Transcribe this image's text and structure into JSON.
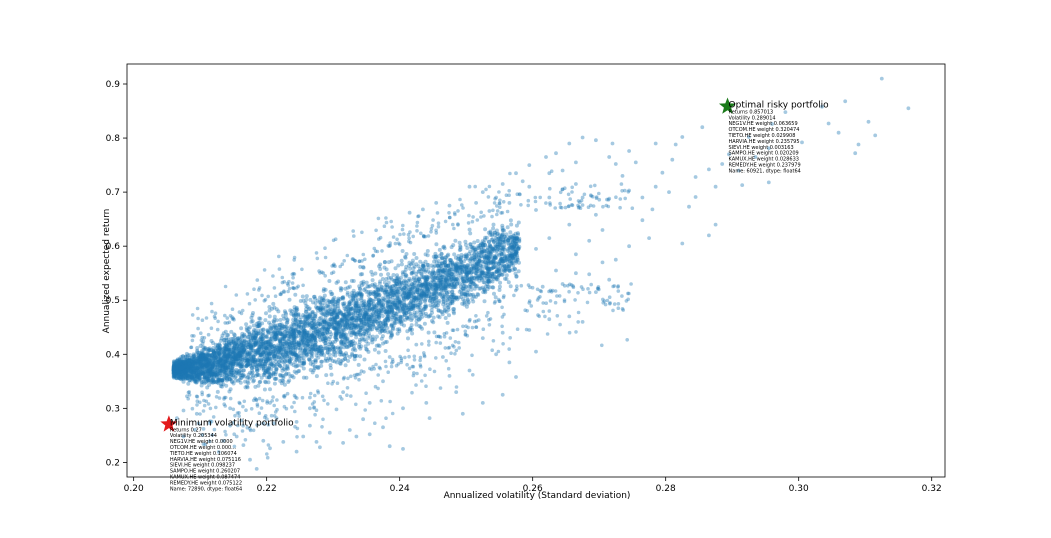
{
  "chart_data": {
    "type": "scatter",
    "title": "",
    "xlabel": "Annualized volatility (Standard deviation)",
    "ylabel": "Annualized expected return",
    "xlim": [
      0.199,
      0.322
    ],
    "ylim": [
      0.173,
      0.937
    ],
    "xticks": [
      "0.20",
      "0.22",
      "0.24",
      "0.26",
      "0.28",
      "0.30",
      "0.32"
    ],
    "yticks": [
      "0.2",
      "0.3",
      "0.4",
      "0.5",
      "0.6",
      "0.7",
      "0.8",
      "0.9"
    ],
    "grid": false,
    "series": [
      {
        "marker_color": "#1f77b4",
        "alpha": 0.4,
        "dense_band": {
          "x_start": 0.206,
          "x_end": 0.258,
          "lower_edge": [
            [
              0.206,
              0.352
            ],
            [
              0.212,
              0.322
            ],
            [
              0.22,
              0.318
            ],
            [
              0.23,
              0.35
            ],
            [
              0.24,
              0.4
            ],
            [
              0.25,
              0.46
            ],
            [
              0.258,
              0.53
            ]
          ],
          "upper_edge": [
            [
              0.206,
              0.39
            ],
            [
              0.212,
              0.44
            ],
            [
              0.22,
              0.5
            ],
            [
              0.23,
              0.55
            ],
            [
              0.24,
              0.6
            ],
            [
              0.25,
              0.64
            ],
            [
              0.258,
              0.67
            ]
          ]
        },
        "outliers": [
          [
            0.3125,
            0.91
          ],
          [
            0.3165,
            0.855
          ],
          [
            0.307,
            0.868
          ],
          [
            0.3035,
            0.858
          ],
          [
            0.298,
            0.848
          ],
          [
            0.3105,
            0.83
          ],
          [
            0.3115,
            0.805
          ],
          [
            0.3045,
            0.827
          ],
          [
            0.306,
            0.81
          ],
          [
            0.3005,
            0.792
          ],
          [
            0.309,
            0.788
          ],
          [
            0.3085,
            0.772
          ],
          [
            0.2955,
            0.781
          ],
          [
            0.2935,
            0.765
          ],
          [
            0.2885,
            0.752
          ],
          [
            0.291,
            0.74
          ],
          [
            0.2855,
            0.82
          ],
          [
            0.2925,
            0.802
          ],
          [
            0.296,
            0.826
          ],
          [
            0.2825,
            0.802
          ],
          [
            0.281,
            0.76
          ],
          [
            0.2795,
            0.736
          ],
          [
            0.2815,
            0.788
          ],
          [
            0.2955,
            0.718
          ],
          [
            0.2915,
            0.713
          ],
          [
            0.2875,
            0.71
          ],
          [
            0.2845,
            0.691
          ],
          [
            0.2805,
            0.7
          ],
          [
            0.278,
            0.668
          ],
          [
            0.2765,
            0.648
          ],
          [
            0.2835,
            0.673
          ],
          [
            0.2875,
            0.64
          ],
          [
            0.2865,
            0.62
          ],
          [
            0.2825,
            0.605
          ],
          [
            0.2775,
            0.615
          ],
          [
            0.2735,
            0.73
          ],
          [
            0.2745,
            0.703
          ],
          [
            0.2715,
            0.688
          ],
          [
            0.2695,
            0.658
          ],
          [
            0.2705,
            0.63
          ],
          [
            0.2685,
            0.61
          ],
          [
            0.2665,
            0.585
          ],
          [
            0.2645,
            0.74
          ],
          [
            0.2665,
            0.715
          ],
          [
            0.2635,
            0.772
          ],
          [
            0.2655,
            0.79
          ],
          [
            0.2675,
            0.801
          ],
          [
            0.2695,
            0.796
          ],
          [
            0.272,
            0.79
          ],
          [
            0.262,
            0.765
          ],
          [
            0.2625,
            0.69
          ],
          [
            0.2605,
            0.667
          ],
          [
            0.2635,
            0.555
          ],
          [
            0.2615,
            0.525
          ],
          [
            0.2595,
            0.495
          ],
          [
            0.2685,
            0.548
          ],
          [
            0.2695,
            0.515
          ],
          [
            0.2715,
            0.538
          ],
          [
            0.2555,
            0.44
          ],
          [
            0.2545,
            0.4
          ],
          [
            0.2525,
            0.43
          ],
          [
            0.2505,
            0.37
          ],
          [
            0.2465,
            0.395
          ],
          [
            0.2425,
            0.418
          ],
          [
            0.2385,
            0.395
          ],
          [
            0.2485,
            0.33
          ],
          [
            0.244,
            0.31
          ],
          [
            0.2405,
            0.3
          ],
          [
            0.2355,
            0.31
          ],
          [
            0.2315,
            0.33
          ],
          [
            0.2385,
            0.23
          ],
          [
            0.2405,
            0.225
          ],
          [
            0.2355,
            0.252
          ],
          [
            0.2325,
            0.26
          ],
          [
            0.2295,
            0.255
          ],
          [
            0.228,
            0.228
          ],
          [
            0.2245,
            0.22
          ],
          [
            0.2225,
            0.238
          ],
          [
            0.2195,
            0.24
          ],
          [
            0.2175,
            0.205
          ],
          [
            0.2185,
            0.188
          ],
          [
            0.2165,
            0.232
          ],
          [
            0.2265,
            0.268
          ],
          [
            0.2245,
            0.275
          ],
          [
            0.2215,
            0.282
          ],
          [
            0.2265,
            0.3
          ],
          [
            0.2305,
            0.298
          ],
          [
            0.2345,
            0.28
          ],
          [
            0.2375,
            0.265
          ],
          [
            0.2445,
            0.282
          ],
          [
            0.2575,
            0.358
          ],
          [
            0.2605,
            0.405
          ],
          [
            0.2565,
            0.385
          ],
          [
            0.2595,
            0.445
          ],
          [
            0.2625,
            0.465
          ],
          [
            0.2655,
            0.47
          ],
          [
            0.2675,
            0.46
          ],
          [
            0.2555,
            0.63
          ],
          [
            0.2565,
            0.68
          ],
          [
            0.2595,
            0.71
          ],
          [
            0.2575,
            0.735
          ],
          [
            0.2545,
            0.69
          ],
          [
            0.2525,
            0.7
          ],
          [
            0.2505,
            0.71
          ],
          [
            0.2535,
            0.665
          ],
          [
            0.2515,
            0.68
          ],
          [
            0.2475,
            0.675
          ],
          [
            0.2455,
            0.68
          ],
          [
            0.2435,
            0.668
          ],
          [
            0.2415,
            0.662
          ],
          [
            0.2495,
            0.29
          ],
          [
            0.2525,
            0.31
          ],
          [
            0.2555,
            0.325
          ],
          [
            0.2475,
            0.36
          ],
          [
            0.2375,
            0.35
          ],
          [
            0.2265,
            0.32
          ],
          [
            0.2205,
            0.31
          ],
          [
            0.2145,
            0.3
          ],
          [
            0.2095,
            0.29
          ],
          [
            0.2075,
            0.296
          ],
          [
            0.2065,
            0.282
          ],
          [
            0.2115,
            0.276
          ],
          [
            0.2145,
            0.268
          ],
          [
            0.2105,
            0.262
          ],
          [
            0.2175,
            0.262
          ],
          [
            0.2195,
            0.272
          ],
          [
            0.2155,
            0.248
          ],
          [
            0.2135,
            0.24
          ],
          [
            0.2075,
            0.248
          ],
          [
            0.2105,
            0.234
          ],
          [
            0.2255,
            0.248
          ],
          [
            0.2205,
            0.226
          ],
          [
            0.2315,
            0.236
          ],
          [
            0.2335,
            0.248
          ],
          [
            0.2275,
            0.238
          ],
          [
            0.2715,
            0.765
          ],
          [
            0.2755,
            0.755
          ],
          [
            0.2785,
            0.79
          ],
          [
            0.2745,
            0.776
          ],
          [
            0.2725,
            0.752
          ],
          [
            0.2665,
            0.755
          ],
          [
            0.2625,
            0.735
          ],
          [
            0.2595,
            0.75
          ],
          [
            0.2585,
            0.72
          ],
          [
            0.2555,
            0.715
          ],
          [
            0.2645,
            0.705
          ],
          [
            0.2675,
            0.69
          ],
          [
            0.2655,
            0.64
          ],
          [
            0.2625,
            0.615
          ],
          [
            0.2605,
            0.595
          ],
          [
            0.2745,
            0.6
          ],
          [
            0.2725,
            0.575
          ],
          [
            0.2705,
            0.57
          ],
          [
            0.2665,
            0.55
          ],
          [
            0.2645,
            0.53
          ],
          [
            0.2895,
            0.77
          ],
          [
            0.2865,
            0.742
          ],
          [
            0.2845,
            0.728
          ],
          [
            0.2785,
            0.71
          ],
          [
            0.2765,
            0.69
          ]
        ]
      }
    ],
    "markers": [
      {
        "name": "Minimum volatility portfolio",
        "x": 0.2053,
        "y": 0.2705,
        "color": "#e31a1c",
        "symbol": "star",
        "label_lines": [
          "Returns        0.27",
          "Volatility      0.205344",
          "NEG1V.HE weight    0.0000",
          "OTCOM.HE weight    0.000...",
          "TIETO.HE weight    0.106074",
          "HARVIA.HE weight   0.075116",
          "SIEVI.HE weight    0.098237",
          "SAMPO.HE weight    0.260207",
          "KAMUX.HE weight    0.087474",
          "REMEDY.HE weight   0.075122",
          "Name: 72890, dtype: float64"
        ]
      },
      {
        "name": "Optimal risky portfolio",
        "x": 0.2893,
        "y": 0.8585,
        "color": "#1a7a1a",
        "symbol": "star",
        "label_lines": [
          "Returns        0.857013",
          "Volatility      0.289014",
          "NEG1V.HE weight    0.063659",
          "OTCOM.HE weight    0.320474",
          "TIETO.HE weight    0.029908",
          "HARVIA.HE weight   0.235795",
          "SIEVI.HE weight    0.003163",
          "SAMPO.HE weight    0.020209",
          "KAMUX.HE weight    0.028633",
          "REMEDY.HE weight   0.237979",
          "Name: 60921, dtype: float64"
        ]
      }
    ]
  }
}
